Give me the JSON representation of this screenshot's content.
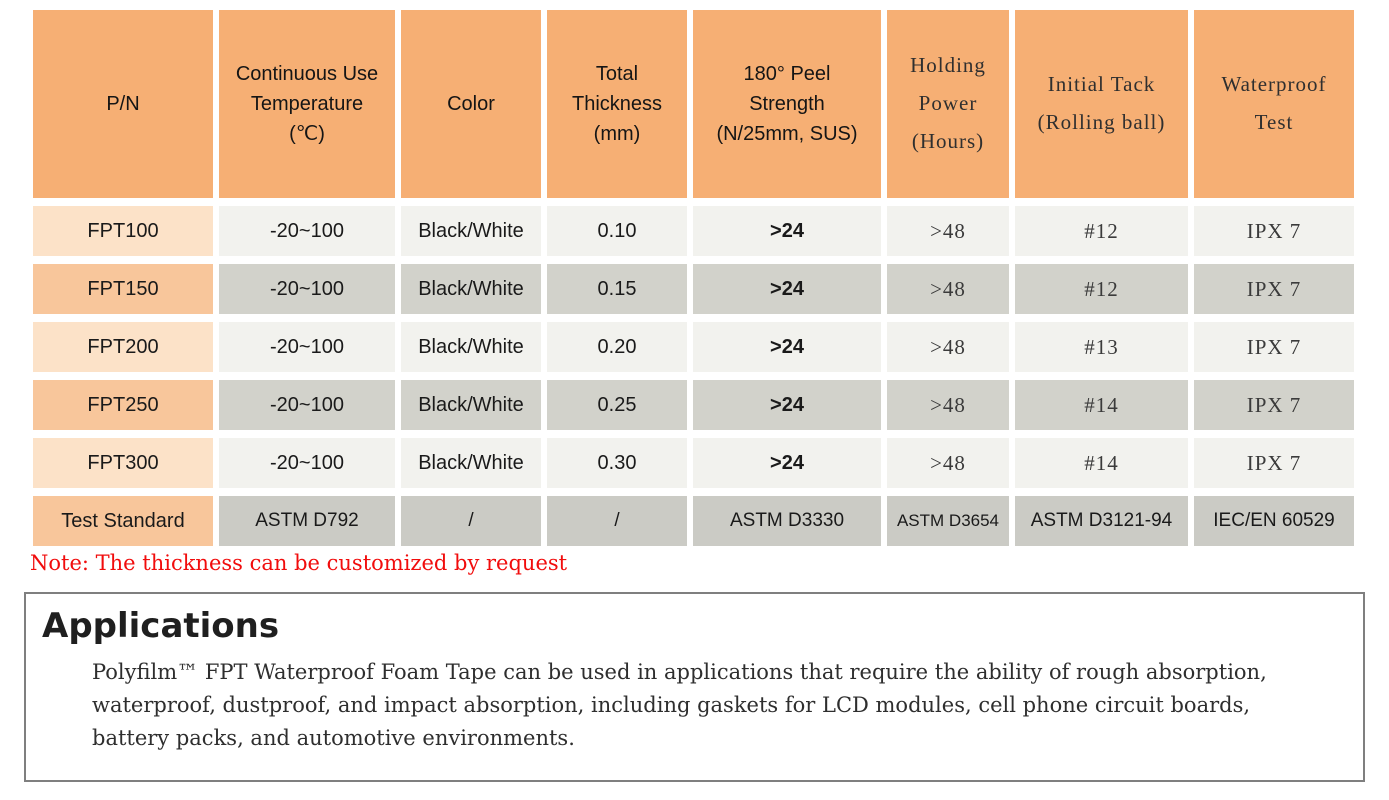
{
  "colors": {
    "header-bg": "#F6AF74",
    "pn-light": "#FCE2C8",
    "pn-med": "#F8C69B",
    "row-light": "#F2F2EE",
    "row-dark": "#D2D2CB",
    "test-bg": "#CBCBC5",
    "note-red": "#F10C0C",
    "box-border": "#7F7F7F"
  },
  "table": {
    "headers": [
      "P/N",
      "Continuous Use\nTemperature\n(℃)",
      "Color",
      "Total\nThickness\n(mm)",
      "180° Peel\nStrength\n(N/25mm, SUS)",
      "Holding\nPower\n(Hours)",
      "Initial Tack\n(Rolling ball)",
      "Waterproof\nTest"
    ],
    "rows": [
      {
        "pn": "FPT100",
        "temp": "-20~100",
        "color": "Black/White",
        "thickness": "0.10",
        "peel": ">24",
        "holding": ">48",
        "tack": "#12",
        "waterproof": "IPX 7"
      },
      {
        "pn": "FPT150",
        "temp": "-20~100",
        "color": "Black/White",
        "thickness": "0.15",
        "peel": ">24",
        "holding": ">48",
        "tack": "#12",
        "waterproof": "IPX 7"
      },
      {
        "pn": "FPT200",
        "temp": "-20~100",
        "color": "Black/White",
        "thickness": "0.20",
        "peel": ">24",
        "holding": ">48",
        "tack": "#13",
        "waterproof": "IPX 7"
      },
      {
        "pn": "FPT250",
        "temp": "-20~100",
        "color": "Black/White",
        "thickness": "0.25",
        "peel": ">24",
        "holding": ">48",
        "tack": "#14",
        "waterproof": "IPX 7"
      },
      {
        "pn": "FPT300",
        "temp": "-20~100",
        "color": "Black/White",
        "thickness": "0.30",
        "peel": ">24",
        "holding": ">48",
        "tack": "#14",
        "waterproof": "IPX 7"
      },
      {
        "pn": "Test Standard",
        "temp": "ASTM D792",
        "color": "/",
        "thickness": "/",
        "peel": "ASTM D3330",
        "holding": "ASTM D3654",
        "tack": "ASTM D3121-94",
        "waterproof": "IEC/EN 60529"
      }
    ]
  },
  "note": "Note: The thickness can be customized by request",
  "applications": {
    "title": "Applications",
    "body": "Polyfilm™ FPT Waterproof Foam Tape can be used in applications that require the ability of rough absorption,\nwaterproof, dustproof, and impact absorption, including gaskets for LCD modules, cell phone circuit boards,\nbattery packs, and automotive environments."
  }
}
